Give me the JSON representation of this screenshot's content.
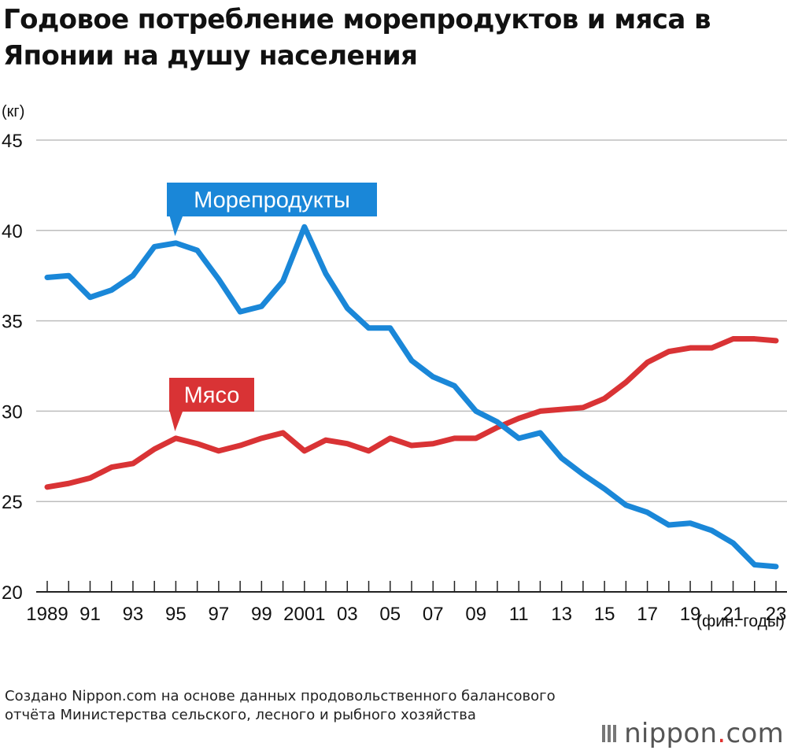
{
  "title": "Годовое потребление морепродуктов и мяса в Японии на душу населения",
  "source": "Создано Nippon.com на основе данных продовольственного балансового отчёта Министерства сельского, лесного и рыбного хозяйства",
  "logo": {
    "prefix": "nippon",
    "dot": ".",
    "suffix": "com"
  },
  "chart_data": {
    "type": "line",
    "title": "Годовое потребление морепродуктов и мяса в Японии на душу населения",
    "ylabel": "(кг)",
    "xlabel": "(фин. годы)",
    "ylim": [
      20,
      45
    ],
    "yticks": [
      20,
      25,
      30,
      35,
      40,
      45
    ],
    "xlim": [
      1989,
      2023
    ],
    "xtick_labels": [
      {
        "x": 1989,
        "label": "1989"
      },
      {
        "x": 1991,
        "label": "91"
      },
      {
        "x": 1993,
        "label": "93"
      },
      {
        "x": 1995,
        "label": "95"
      },
      {
        "x": 1997,
        "label": "97"
      },
      {
        "x": 1999,
        "label": "99"
      },
      {
        "x": 2001,
        "label": "2001"
      },
      {
        "x": 2003,
        "label": "03"
      },
      {
        "x": 2005,
        "label": "05"
      },
      {
        "x": 2007,
        "label": "07"
      },
      {
        "x": 2009,
        "label": "09"
      },
      {
        "x": 2011,
        "label": "11"
      },
      {
        "x": 2013,
        "label": "13"
      },
      {
        "x": 2015,
        "label": "15"
      },
      {
        "x": 2017,
        "label": "17"
      },
      {
        "x": 2019,
        "label": "19"
      },
      {
        "x": 2021,
        "label": "21"
      },
      {
        "x": 2023,
        "label": "23"
      }
    ],
    "grid": true,
    "x": [
      1989,
      1990,
      1991,
      1992,
      1993,
      1994,
      1995,
      1996,
      1997,
      1998,
      1999,
      2000,
      2001,
      2002,
      2003,
      2004,
      2005,
      2006,
      2007,
      2008,
      2009,
      2010,
      2011,
      2012,
      2013,
      2014,
      2015,
      2016,
      2017,
      2018,
      2019,
      2020,
      2021,
      2022,
      2023
    ],
    "series": [
      {
        "name": "Морепродукты",
        "color": "#1a87d8",
        "label_x": 1995,
        "values": [
          37.4,
          37.5,
          36.3,
          36.7,
          37.5,
          39.1,
          39.3,
          38.9,
          37.3,
          35.5,
          35.8,
          37.2,
          40.2,
          37.6,
          35.7,
          34.6,
          34.6,
          32.8,
          31.9,
          31.4,
          30.0,
          29.4,
          28.5,
          28.8,
          27.4,
          26.5,
          25.7,
          24.8,
          24.4,
          23.7,
          23.8,
          23.4,
          22.7,
          21.5,
          21.4
        ]
      },
      {
        "name": "Мясо",
        "color": "#d93335",
        "label_x": 1995,
        "values": [
          25.8,
          26.0,
          26.3,
          26.9,
          27.1,
          27.9,
          28.5,
          28.2,
          27.8,
          28.1,
          28.5,
          28.8,
          27.8,
          28.4,
          28.2,
          27.8,
          28.5,
          28.1,
          28.2,
          28.5,
          28.5,
          29.1,
          29.6,
          30.0,
          30.1,
          30.2,
          30.7,
          31.6,
          32.7,
          33.3,
          33.5,
          33.5,
          34.0,
          34.0,
          33.9
        ]
      }
    ]
  }
}
